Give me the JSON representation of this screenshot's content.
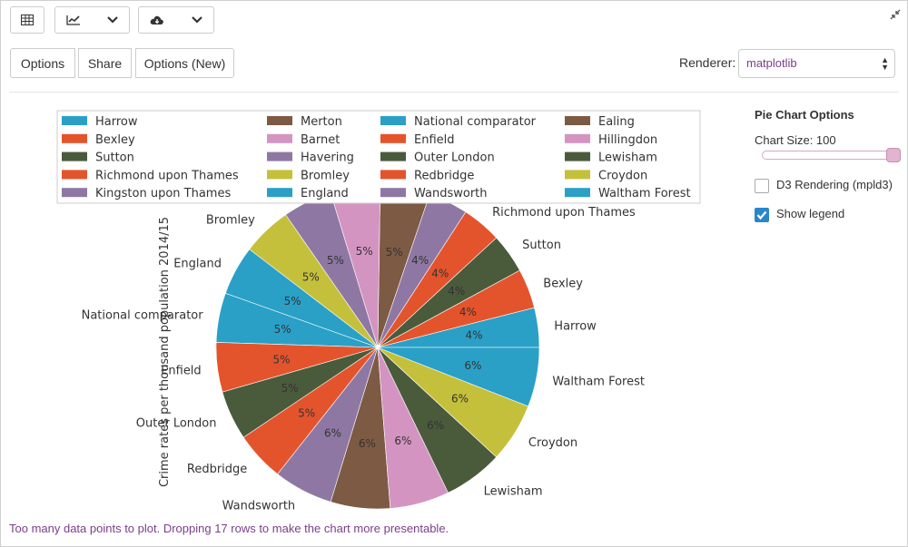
{
  "toolbar": {
    "collapse_icon": "collapse-arrows-icon",
    "grid_icon": "table-grid-icon",
    "chart_icon": "line-chart-icon",
    "download_icon": "cloud-download-icon",
    "chevron_icon": "chevron-down-icon"
  },
  "actions": {
    "options": "Options",
    "share": "Share",
    "options_new": "Options (New)"
  },
  "renderer": {
    "label": "Renderer:",
    "value": "matplotlib"
  },
  "options_panel": {
    "title": "Pie Chart Options",
    "chart_size_label": "Chart Size: 100",
    "chart_size_value": 100,
    "d3_label": "D3 Rendering (mpld3)",
    "d3_checked": false,
    "legend_label": "Show legend",
    "legend_checked": true
  },
  "footer": {
    "note": "Too many data points to plot. Dropping 17 rows to make the chart more presentable."
  },
  "chart_data": {
    "type": "pie",
    "ylabel": "Crime rates per thousand population 2014/15",
    "legend_position": "top",
    "legend_columns": [
      [
        "Harrow",
        "Bexley",
        "Sutton",
        "Richmond upon Thames",
        "Kingston upon Thames"
      ],
      [
        "Merton",
        "Barnet",
        "Havering",
        "Bromley",
        "England"
      ],
      [
        "National comparator",
        "Enfield",
        "Outer London",
        "Redbridge",
        "Wandsworth"
      ],
      [
        "Ealing",
        "Hillingdon",
        "Lewisham",
        "Croydon",
        "Waltham Forest"
      ]
    ],
    "slices": [
      {
        "label": "Harrow",
        "value": 4,
        "pct_label": "4%",
        "color": "#2aa0c7"
      },
      {
        "label": "Bexley",
        "value": 4,
        "pct_label": "4%",
        "color": "#e4542c"
      },
      {
        "label": "Sutton",
        "value": 4,
        "pct_label": "4%",
        "color": "#4a5b3c"
      },
      {
        "label": "Richmond upon Thames",
        "value": 4,
        "pct_label": "4%",
        "color": "#e4542c"
      },
      {
        "label": "Kingston upon Thames",
        "value": 4,
        "pct_label": "4%",
        "color": "#8e78a3"
      },
      {
        "label": "Merton",
        "value": 5,
        "pct_label": "5%",
        "color": "#7d5a43"
      },
      {
        "label": "Barnet",
        "value": 5,
        "pct_label": "5%",
        "color": "#d494c2"
      },
      {
        "label": "Havering",
        "value": 5,
        "pct_label": "5%",
        "color": "#8e78a3"
      },
      {
        "label": "Bromley",
        "value": 5,
        "pct_label": "5%",
        "color": "#c5c03b"
      },
      {
        "label": "England",
        "value": 5,
        "pct_label": "5%",
        "color": "#2aa0c7"
      },
      {
        "label": "National comparator",
        "value": 5,
        "pct_label": "5%",
        "color": "#2aa0c7"
      },
      {
        "label": "Enfield",
        "value": 5,
        "pct_label": "5%",
        "color": "#e4542c"
      },
      {
        "label": "Outer London",
        "value": 5,
        "pct_label": "5%",
        "color": "#4a5b3c"
      },
      {
        "label": "Redbridge",
        "value": 5,
        "pct_label": "5%",
        "color": "#e4542c"
      },
      {
        "label": "Wandsworth",
        "value": 6,
        "pct_label": "6%",
        "color": "#8e78a3"
      },
      {
        "label": "Ealing",
        "value": 6,
        "pct_label": "6%",
        "color": "#7d5a43"
      },
      {
        "label": "Hillingdon",
        "value": 6,
        "pct_label": "6%",
        "color": "#d494c2"
      },
      {
        "label": "Lewisham",
        "value": 6,
        "pct_label": "6%",
        "color": "#4a5b3c"
      },
      {
        "label": "Croydon",
        "value": 6,
        "pct_label": "6%",
        "color": "#c5c03b"
      },
      {
        "label": "Waltham Forest",
        "value": 6,
        "pct_label": "6%",
        "color": "#2aa0c7"
      }
    ]
  }
}
